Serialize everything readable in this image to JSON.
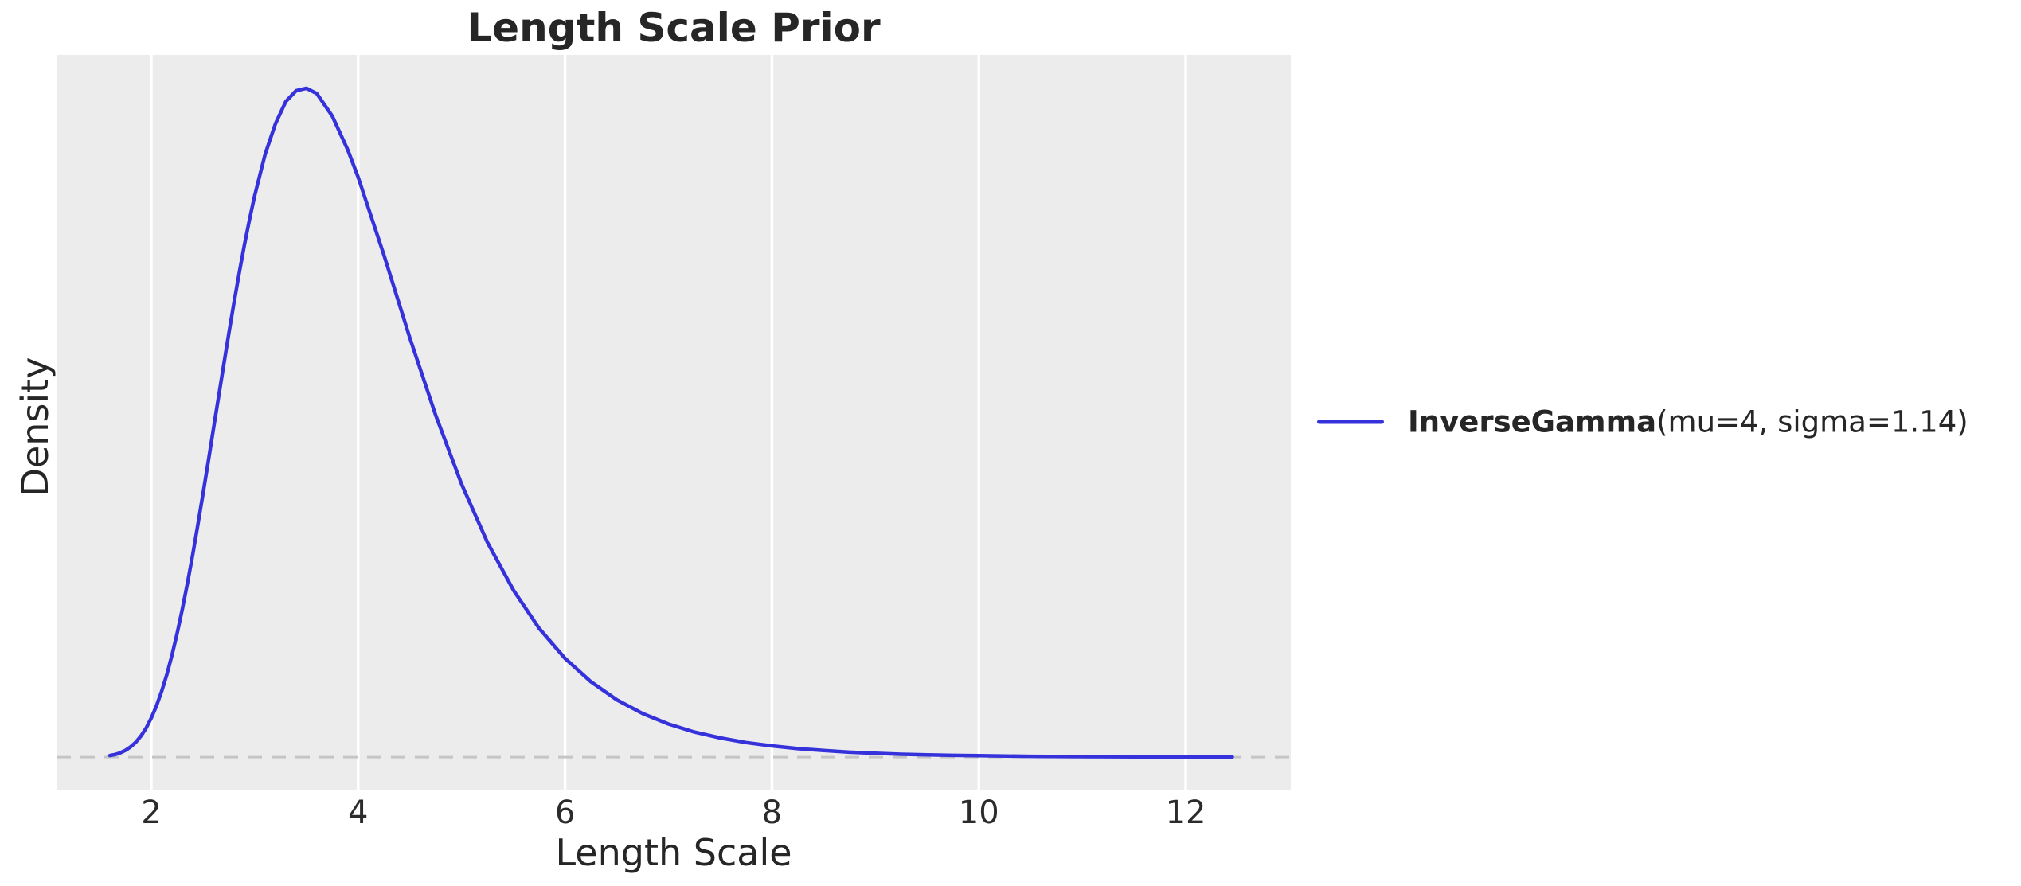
{
  "figure": {
    "title": "Length Scale Prior",
    "xlabel": "Length Scale",
    "ylabel": "Density"
  },
  "legend": {
    "entry_bold": "InverseGamma",
    "entry_rest": "(mu=4, sigma=1.14)"
  },
  "colors": {
    "curve": "#3532db",
    "plot_background": "#ececec",
    "gridline": "#ffffff",
    "zero_line": "#c5c5c5",
    "text": "#262626"
  },
  "chart_data": {
    "type": "line",
    "title": "Length Scale Prior",
    "xlabel": "Length Scale",
    "ylabel": "Density",
    "x_ticks": [
      2,
      4,
      6,
      8,
      10,
      12
    ],
    "y_ticks": [],
    "xlim": [
      1.084,
      13.016
    ],
    "ylim": [
      -0.0209,
      0.4397
    ],
    "grid": "vertical-only",
    "legend_position": "outside-center-right",
    "zero_line": {
      "y": 0.0,
      "style": "dashed"
    },
    "peak": {
      "x": 3.5,
      "density": 0.419
    },
    "series": [
      {
        "name": "InverseGamma(mu=4, sigma=1.14)",
        "color": "#3532db",
        "x": [
          1.6,
          1.65,
          1.7,
          1.75,
          1.8,
          1.85,
          1.9,
          1.95,
          2.0,
          2.05,
          2.1,
          2.15,
          2.2,
          2.25,
          2.3,
          2.35,
          2.4,
          2.45,
          2.5,
          2.55,
          2.6,
          2.65,
          2.7,
          2.75,
          2.8,
          2.85,
          2.9,
          2.95,
          3.0,
          3.1,
          3.2,
          3.3,
          3.4,
          3.5,
          3.6,
          3.75,
          3.9,
          4.0,
          4.25,
          4.5,
          4.75,
          5.0,
          5.25,
          5.5,
          5.75,
          6.0,
          6.25,
          6.5,
          6.75,
          7.0,
          7.25,
          7.5,
          7.75,
          8.0,
          8.25,
          8.5,
          8.75,
          9.0,
          9.25,
          9.5,
          9.75,
          10.0,
          10.5,
          11.0,
          11.5,
          12.0,
          12.45
        ],
        "y": [
          0.001,
          0.0016,
          0.0027,
          0.0042,
          0.0064,
          0.0093,
          0.0132,
          0.0182,
          0.0245,
          0.0321,
          0.0412,
          0.0517,
          0.0639,
          0.0776,
          0.0927,
          0.1091,
          0.1267,
          0.1453,
          0.1648,
          0.1847,
          0.2051,
          0.2253,
          0.2455,
          0.2654,
          0.2847,
          0.3031,
          0.3206,
          0.3367,
          0.3517,
          0.3774,
          0.3966,
          0.4105,
          0.4173,
          0.4188,
          0.4155,
          0.4014,
          0.3802,
          0.3631,
          0.3142,
          0.2625,
          0.214,
          0.1709,
          0.1344,
          0.1046,
          0.0806,
          0.0618,
          0.0472,
          0.0359,
          0.0273,
          0.0207,
          0.0157,
          0.012,
          0.0091,
          0.007,
          0.0053,
          0.0041,
          0.0031,
          0.0024,
          0.0018,
          0.0014,
          0.0011,
          0.0009,
          0.0005,
          0.0003,
          0.0002,
          0.0001,
          0.0001
        ]
      }
    ]
  }
}
